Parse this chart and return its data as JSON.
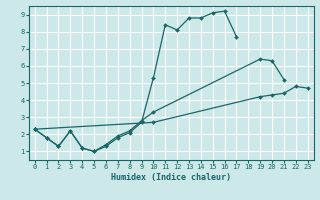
{
  "xlabel": "Humidex (Indice chaleur)",
  "bg_color": "#cce8e8",
  "grid_color": "#ffffff",
  "line_color": "#1a6666",
  "xlim": [
    -0.5,
    23.5
  ],
  "ylim": [
    0.5,
    9.5
  ],
  "yticks": [
    1,
    2,
    3,
    4,
    5,
    6,
    7,
    8,
    9
  ],
  "xticks": [
    0,
    1,
    2,
    3,
    4,
    5,
    6,
    7,
    8,
    9,
    10,
    11,
    12,
    13,
    14,
    15,
    16,
    17,
    18,
    19,
    20,
    21,
    22,
    23
  ],
  "line1_x": [
    0,
    1,
    2,
    3,
    4,
    5,
    6,
    7,
    8,
    9,
    10,
    11,
    12,
    13,
    14,
    15,
    16,
    17
  ],
  "line1_y": [
    2.3,
    1.8,
    1.3,
    2.2,
    1.2,
    1.0,
    1.3,
    1.8,
    2.1,
    2.7,
    5.3,
    8.4,
    8.1,
    8.8,
    8.8,
    9.1,
    9.2,
    7.7
  ],
  "line2_x": [
    0,
    1,
    2,
    3,
    4,
    5,
    6,
    7,
    8,
    9,
    10,
    19,
    20,
    21
  ],
  "line2_y": [
    2.3,
    1.8,
    1.3,
    2.2,
    1.2,
    1.0,
    1.4,
    1.9,
    2.2,
    2.8,
    3.3,
    6.4,
    6.3,
    5.2
  ],
  "line3_x": [
    0,
    10,
    19,
    20,
    21,
    22,
    23
  ],
  "line3_y": [
    2.3,
    2.7,
    4.2,
    4.3,
    4.4,
    4.8,
    4.7
  ]
}
